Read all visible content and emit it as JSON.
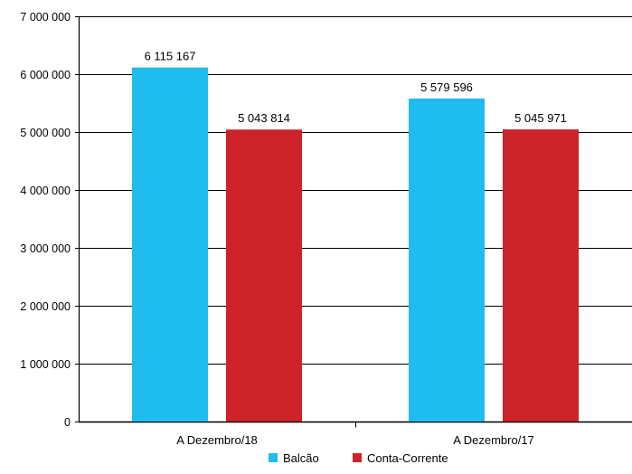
{
  "chart_data": {
    "type": "bar",
    "title": "",
    "xlabel": "",
    "ylabel": "",
    "categories": [
      "A Dezembro/18",
      "A Dezembro/17"
    ],
    "series": [
      {
        "name": "Balcão",
        "color": "#1fbcee",
        "values": [
          6115167,
          5579596
        ],
        "labels": [
          "6 115 167",
          "5 579 596"
        ]
      },
      {
        "name": "Conta-Corrente",
        "color": "#cc2229",
        "values": [
          5043814,
          5045971
        ],
        "labels": [
          "5 043 814",
          "5 045 971"
        ]
      }
    ],
    "ylim": [
      0,
      7000000
    ],
    "yticks": [
      0,
      1000000,
      2000000,
      3000000,
      4000000,
      5000000,
      6000000,
      7000000
    ],
    "ytick_labels": [
      "0",
      "1 000 000",
      "2 000 000",
      "3 000 000",
      "4 000 000",
      "5 000 000",
      "6 000 000",
      "7 000 000"
    ],
    "grid": true,
    "legend_position": "bottom"
  }
}
